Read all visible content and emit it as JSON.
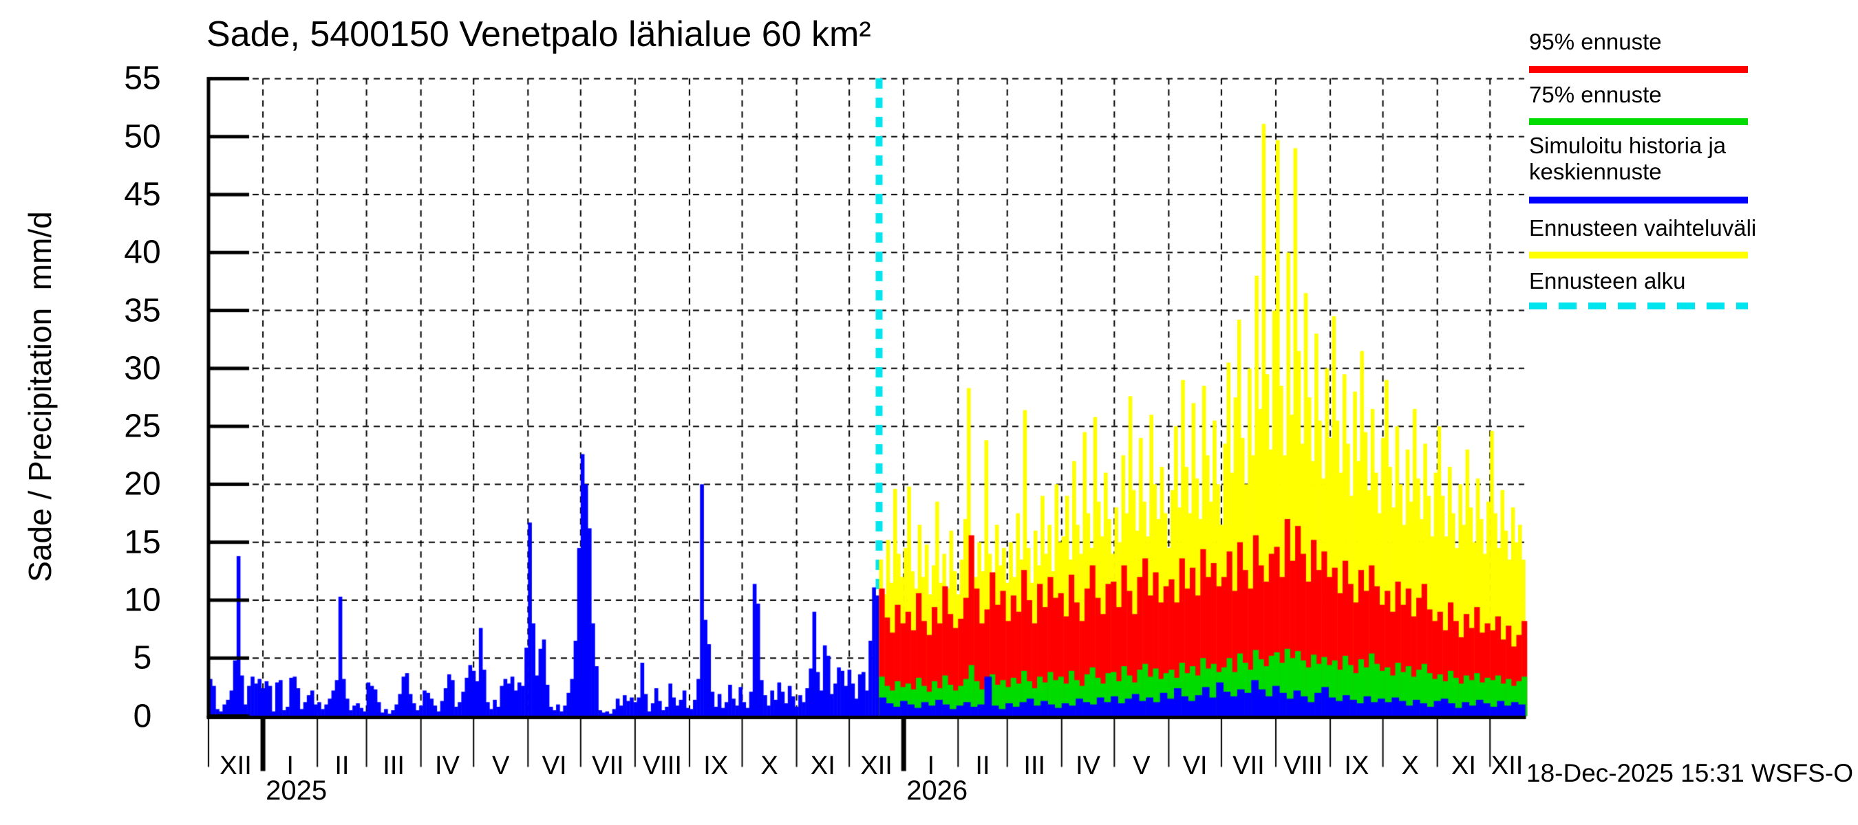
{
  "title": "Sade, 5400150 Venetpalo lähialue 60 km²",
  "timestamp": "18-Dec-2025 15:31 WSFS-O",
  "y_axis": {
    "label": "Sade / Precipitation  mm/d",
    "ticks": [
      0,
      5,
      10,
      15,
      20,
      25,
      30,
      35,
      40,
      45,
      50,
      55
    ]
  },
  "x_axis": {
    "month_labels": [
      "XII",
      "I",
      "II",
      "III",
      "IV",
      "V",
      "VI",
      "VII",
      "VIII",
      "IX",
      "X",
      "XI",
      "XII",
      "I",
      "II",
      "III",
      "IV",
      "V",
      "VI",
      "VII",
      "VIII",
      "IX",
      "X",
      "XI",
      "XII"
    ],
    "year_markers": [
      {
        "day": 31,
        "label": "2025"
      },
      {
        "day": 396,
        "label": "2026"
      }
    ]
  },
  "legend": {
    "items": [
      {
        "label": "95% ennuste",
        "color": "#FF0000",
        "style": "solid"
      },
      {
        "label": "75% ennuste",
        "color": "#00DC00",
        "style": "solid"
      },
      {
        "label": "Simuloitu historia ja keskiennuste",
        "color": "#0000FF",
        "style": "solid"
      },
      {
        "label": "Ennusteen vaihteluväli",
        "color": "#FFFF00",
        "style": "solid"
      },
      {
        "label": "Ennusteen alku",
        "color": "#00E5EE",
        "style": "dashed"
      }
    ]
  },
  "colors": {
    "history": "#0000FF",
    "median": "#0000FF",
    "p75": "#00DC00",
    "p95": "#FF0000",
    "range": "#FFFF00",
    "forecast_start": "#00E5EE",
    "grid": "#000000",
    "axis": "#000000"
  },
  "chart_data": {
    "type": "bar",
    "title": "Sade, 5400150 Venetpalo lähialue 60 km²",
    "ylabel": "Sade / Precipitation  mm/d",
    "ylim": [
      0,
      55
    ],
    "grid": true,
    "legend_position": "top-right",
    "x_start_date": "2024-12-01",
    "x_end_day": 749.5,
    "month_boundaries_days": [
      0,
      31,
      62,
      90,
      121,
      151,
      182,
      212,
      243,
      274,
      304,
      335,
      365,
      396,
      427,
      455,
      486,
      516,
      547,
      577,
      608,
      639,
      669,
      700,
      730,
      749.5
    ],
    "forecast_start_day": 382,
    "forecast_start_date": "2025-12-18",
    "series": {
      "history": {
        "name": "Simuloitu historia",
        "start": 0,
        "step": 2,
        "values": [
          3.2,
          2.6,
          0.6,
          0.4,
          1.0,
          1.4,
          2.2,
          4.8,
          13.8,
          3.5,
          1.0,
          2.6,
          3.4,
          2.8,
          3.2,
          2.4,
          3.0,
          2.6,
          0.4,
          2.9,
          3.1,
          0.5,
          0.8,
          3.3,
          3.4,
          2.4,
          0.6,
          1.2,
          1.8,
          2.2,
          1.0,
          1.2,
          0.6,
          1.0,
          1.5,
          2.2,
          3.1,
          10.3,
          3.2,
          1.5,
          0.5,
          0.9,
          1.1,
          0.7,
          0.4,
          2.9,
          2.6,
          2.3,
          1.2,
          0.3,
          0.6,
          0.2,
          0.5,
          1.0,
          1.9,
          3.4,
          3.7,
          1.9,
          1.1,
          0.5,
          0.9,
          2.2,
          2.0,
          1.5,
          0.9,
          0.4,
          1.3,
          2.4,
          3.6,
          3.1,
          0.8,
          1.2,
          2.1,
          3.3,
          4.4,
          3.9,
          3.0,
          7.6,
          4.0,
          1.2,
          0.6,
          1.4,
          0.8,
          2.6,
          3.2,
          2.8,
          3.4,
          2.2,
          2.9,
          2.6,
          5.9,
          16.7,
          8.0,
          3.5,
          5.8,
          6.6,
          2.7,
          0.8,
          0.5,
          1.0,
          0.4,
          0.9,
          2.0,
          3.2,
          6.5,
          14.5,
          22.6,
          20.0,
          16.2,
          8.0,
          4.3,
          0.5,
          0.3,
          0.4,
          0.2,
          0.6,
          1.5,
          0.9,
          1.8,
          1.3,
          1.6,
          1.2,
          1.6,
          4.6,
          1.9,
          0.4,
          1.1,
          2.4,
          1.3,
          0.5,
          0.8,
          2.8,
          1.6,
          0.9,
          1.4,
          2.2,
          0.7,
          0.6,
          1.4,
          3.2,
          20.0,
          8.3,
          6.2,
          2.1,
          0.8,
          1.9,
          0.7,
          1.2,
          2.7,
          1.5,
          0.9,
          2.5,
          1.2,
          0.7,
          2.1,
          11.4,
          9.7,
          3.1,
          1.8,
          0.9,
          2.2,
          1.4,
          2.9,
          2.1,
          1.1,
          2.6,
          1.7,
          0.8,
          1.8,
          1.2,
          2.4,
          4.1,
          9.0,
          3.8,
          2.2,
          6.1,
          5.2,
          1.9,
          2.8,
          4.2,
          3.9,
          2.6,
          4.0,
          2.8,
          1.5,
          3.6,
          3.8,
          2.2,
          6.5,
          11.1,
          10.4
        ]
      },
      "forecast_range_max": {
        "name": "Ennusteen vaihteluväli",
        "start": 382,
        "step": 2,
        "values": [
          13.5,
          10.5,
          15.2,
          11.5,
          19.6,
          14.0,
          12.0,
          14.5,
          19.8,
          12.5,
          11.0,
          16.5,
          12.0,
          14.8,
          10.5,
          13.0,
          18.5,
          11.5,
          14.0,
          11.0,
          16.0,
          12.5,
          10.5,
          13.5,
          17.0,
          28.3,
          15.5,
          12.0,
          15.0,
          12.5,
          23.8,
          14.0,
          11.0,
          16.5,
          13.0,
          14.5,
          11.5,
          15.0,
          12.0,
          17.5,
          13.5,
          26.4,
          14.5,
          11.5,
          16.0,
          13.0,
          19.0,
          14.0,
          16.5,
          12.5,
          20.0,
          15.0,
          15.5,
          19.0,
          13.5,
          22.0,
          16.5,
          14.0,
          24.5,
          17.5,
          14.5,
          25.8,
          18.5,
          15.5,
          21.0,
          17.0,
          14.0,
          18.0,
          15.0,
          22.5,
          17.5,
          27.6,
          19.5,
          16.0,
          24.0,
          18.5,
          15.5,
          26.0,
          20.0,
          17.0,
          21.5,
          17.5,
          14.5,
          19.5,
          25.0,
          18.0,
          29.0,
          21.5,
          17.5,
          27.0,
          20.5,
          17.0,
          28.5,
          22.5,
          18.5,
          25.5,
          20.0,
          16.5,
          23.5,
          30.5,
          21.0,
          27.5,
          34.2,
          24.0,
          20.0,
          30.0,
          22.5,
          38.0,
          26.5,
          51.1,
          29.5,
          23.0,
          35.0,
          49.7,
          28.5,
          22.5,
          40.0,
          26.0,
          49.0,
          31.5,
          23.5,
          36.5,
          27.5,
          22.0,
          33.0,
          25.5,
          20.5,
          30.0,
          24.0,
          34.5,
          25.5,
          21.0,
          29.5,
          23.5,
          19.0,
          28.0,
          22.0,
          31.5,
          24.5,
          19.5,
          26.5,
          21.0,
          17.5,
          24.0,
          29.0,
          21.5,
          18.0,
          25.0,
          20.0,
          16.5,
          23.0,
          18.5,
          26.5,
          20.5,
          17.0,
          23.5,
          19.0,
          15.5,
          21.0,
          25.0,
          19.0,
          15.5,
          21.5,
          17.5,
          14.5,
          20.0,
          16.5,
          23.0,
          18.0,
          15.0,
          20.5,
          17.0,
          14.0,
          18.5,
          24.6,
          17.5,
          14.5,
          19.5,
          16.0,
          13.5,
          18.0,
          15.0,
          16.5,
          13.5
        ]
      },
      "forecast_p95": {
        "name": "95% ennuste",
        "start": 382,
        "step": 3,
        "values": [
          11.0,
          8.5,
          7.2,
          9.6,
          8.0,
          9.0,
          7.4,
          10.6,
          8.2,
          7.0,
          9.4,
          8.0,
          11.2,
          8.8,
          7.6,
          8.4,
          10.2,
          15.6,
          11.0,
          8.0,
          9.2,
          12.4,
          9.6,
          10.8,
          8.2,
          10.4,
          9.0,
          12.6,
          10.0,
          8.0,
          11.4,
          9.4,
          12.0,
          10.2,
          10.6,
          8.6,
          12.2,
          9.8,
          8.2,
          11.0,
          13.0,
          10.2,
          8.8,
          11.4,
          11.6,
          9.4,
          13.0,
          10.8,
          8.8,
          12.0,
          13.6,
          10.4,
          12.4,
          9.8,
          11.2,
          11.8,
          9.8,
          13.6,
          11.0,
          12.8,
          10.4,
          14.4,
          12.0,
          13.2,
          11.2,
          12.0,
          14.2,
          10.8,
          15.0,
          12.6,
          11.0,
          15.6,
          13.0,
          11.6,
          14.0,
          14.6,
          12.0,
          17.0,
          13.4,
          16.4,
          14.0,
          11.6,
          15.2,
          12.6,
          14.2,
          12.0,
          12.8,
          10.6,
          13.4,
          11.4,
          9.8,
          12.6,
          10.8,
          13.0,
          11.2,
          9.6,
          10.8,
          9.0,
          11.6,
          9.6,
          11.0,
          8.6,
          10.2,
          11.4,
          9.2,
          8.2,
          9.0,
          7.4,
          9.8,
          8.2,
          6.8,
          8.8,
          7.6,
          9.4,
          7.2,
          8.0,
          7.4,
          8.6,
          6.6,
          7.8,
          6.0,
          7.0,
          8.2
        ]
      },
      "forecast_p75": {
        "name": "75% ennuste",
        "start": 382,
        "step": 3,
        "values": [
          3.4,
          2.6,
          2.2,
          3.0,
          2.5,
          2.8,
          2.3,
          3.3,
          2.6,
          2.1,
          3.0,
          2.4,
          3.5,
          2.7,
          2.2,
          2.6,
          3.2,
          4.4,
          3.0,
          2.3,
          2.8,
          3.6,
          2.7,
          3.1,
          2.5,
          3.3,
          2.8,
          3.9,
          3.0,
          2.4,
          3.4,
          2.9,
          3.8,
          3.1,
          3.4,
          2.8,
          3.9,
          3.1,
          2.6,
          3.6,
          4.2,
          3.3,
          2.8,
          3.7,
          3.8,
          3.0,
          4.3,
          3.5,
          2.9,
          4.0,
          4.5,
          3.4,
          4.1,
          3.2,
          3.7,
          4.0,
          3.3,
          4.6,
          3.7,
          4.3,
          3.5,
          5.0,
          4.1,
          4.5,
          3.8,
          4.2,
          5.0,
          3.8,
          5.4,
          4.6,
          4.0,
          5.7,
          4.9,
          4.3,
          5.2,
          5.5,
          4.6,
          5.8,
          5.0,
          5.6,
          4.8,
          4.2,
          5.3,
          4.5,
          5.1,
          4.4,
          4.8,
          4.0,
          5.2,
          4.4,
          3.7,
          4.9,
          4.2,
          5.4,
          4.5,
          3.9,
          4.2,
          3.5,
          4.6,
          3.8,
          4.3,
          3.4,
          4.0,
          4.5,
          3.7,
          3.2,
          3.6,
          3.0,
          3.9,
          3.3,
          2.8,
          3.5,
          3.1,
          3.7,
          2.9,
          3.3,
          3.1,
          3.5,
          2.8,
          3.2,
          2.6,
          3.0,
          3.4
        ]
      },
      "forecast_median": {
        "name": "Keskiennuste",
        "start": 382,
        "step": 4,
        "values": [
          1.6,
          1.1,
          0.8,
          1.3,
          1.0,
          0.7,
          1.2,
          0.9,
          1.4,
          1.0,
          0.6,
          0.9,
          1.2,
          0.8,
          1.0,
          3.4,
          0.9,
          0.6,
          1.1,
          0.8,
          1.2,
          1.5,
          0.9,
          1.3,
          1.0,
          0.7,
          1.1,
          0.9,
          1.5,
          1.2,
          1.0,
          1.6,
          1.2,
          1.7,
          1.1,
          1.5,
          1.9,
          1.3,
          1.6,
          1.2,
          2.0,
          1.5,
          2.4,
          1.7,
          1.3,
          1.8,
          2.5,
          1.6,
          2.9,
          2.1,
          1.7,
          2.3,
          2.0,
          3.1,
          2.3,
          1.7,
          2.6,
          2.0,
          1.5,
          2.2,
          1.7,
          1.2,
          2.0,
          2.5,
          1.6,
          1.3,
          1.8,
          1.4,
          1.1,
          1.7,
          1.2,
          1.5,
          1.2,
          1.6,
          1.3,
          0.9,
          1.4,
          1.1,
          0.8,
          1.3,
          1.5,
          1.1,
          0.7,
          1.2,
          0.9,
          1.4,
          1.1,
          0.8,
          1.3,
          0.9,
          1.2,
          1.0
        ]
      }
    }
  }
}
